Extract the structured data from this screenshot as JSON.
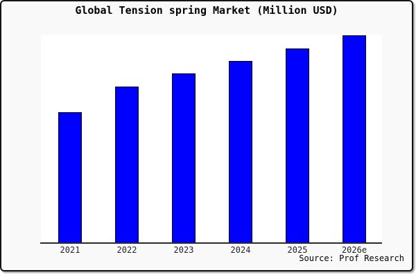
{
  "chart": {
    "title": "Global Tension spring Market (Million USD)",
    "source": "Source: Prof Research"
  },
  "chart_data": {
    "type": "bar",
    "title": "Global Tension spring Market (Million USD)",
    "categories": [
      "2021",
      "2022",
      "2023",
      "2024",
      "2025",
      "2026e"
    ],
    "values": [
      62.9,
      75.3,
      81.7,
      87.8,
      93.8,
      100
    ],
    "xlabel": "",
    "ylabel": "",
    "ylim": [
      0,
      100
    ],
    "grid": false,
    "legend": false,
    "bar_color": "#0000ff",
    "bar_border_color": "#000000",
    "plot_background": "#ffffff",
    "canvas_background": "#f9f9f9",
    "annotations": [
      "Source: Prof Research"
    ],
    "note": "No y-axis, tick values or gridlines are shown in the image; values are relative bar heights expressed as percent of the tallest (2026e) bar."
  }
}
